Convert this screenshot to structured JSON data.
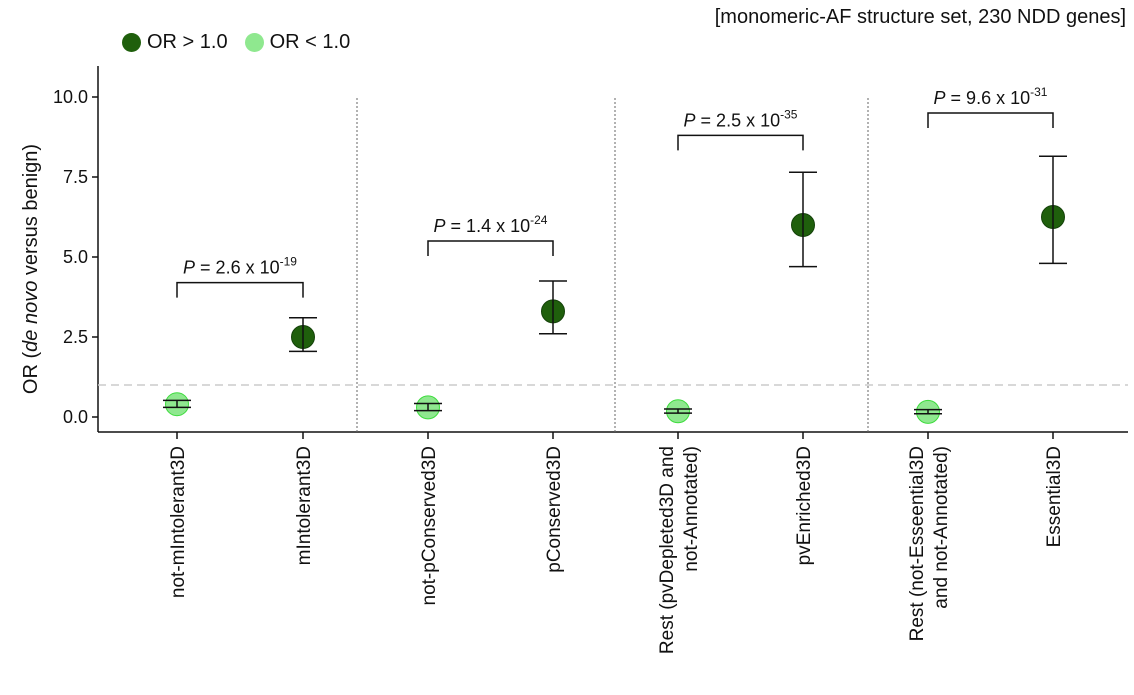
{
  "header": {
    "note": "[monomeric-AF structure set, 230 NDD genes]"
  },
  "legend": {
    "items": [
      {
        "label": "OR > 1.0",
        "color": "#1f5f0c"
      },
      {
        "label": "OR < 1.0",
        "color": "#8fe88f"
      }
    ]
  },
  "chart_data": {
    "type": "scatter",
    "ylabel": "OR (de novo versus benign)",
    "ylabel_parts": [
      {
        "text": "OR (",
        "italic": false
      },
      {
        "text": "de novo",
        "italic": true
      },
      {
        "text": " versus benign)",
        "italic": false
      }
    ],
    "ylim": [
      -0.5,
      11
    ],
    "yticks": [
      0.0,
      2.5,
      5.0,
      7.5,
      10.0
    ],
    "ytick_labels": [
      "0.0",
      "2.5",
      "5.0",
      "7.5",
      "10.0"
    ],
    "reference_line": 1.0,
    "categories": [
      [
        "not-mIntolerant3D"
      ],
      [
        "mIntolerant3D"
      ],
      [
        "not-pConserved3D"
      ],
      [
        "pConserved3D"
      ],
      [
        "Rest (pvDepleted3D and",
        "not-Annotated)"
      ],
      [
        "pvEnriched3D"
      ],
      [
        "Rest (not-Esseential3D",
        "and not-Annotated)"
      ],
      [
        "Essential3D"
      ]
    ],
    "points": [
      {
        "or": 0.4,
        "lo": 0.3,
        "hi": 0.52,
        "group": "OR < 1.0"
      },
      {
        "or": 2.5,
        "lo": 2.05,
        "hi": 3.1,
        "group": "OR > 1.0"
      },
      {
        "or": 0.3,
        "lo": 0.2,
        "hi": 0.42,
        "group": "OR < 1.0"
      },
      {
        "or": 3.3,
        "lo": 2.6,
        "hi": 4.25,
        "group": "OR > 1.0"
      },
      {
        "or": 0.18,
        "lo": 0.12,
        "hi": 0.25,
        "group": "OR < 1.0"
      },
      {
        "or": 6.0,
        "lo": 4.7,
        "hi": 7.65,
        "group": "OR > 1.0"
      },
      {
        "or": 0.16,
        "lo": 0.1,
        "hi": 0.23,
        "group": "OR < 1.0"
      },
      {
        "or": 6.25,
        "lo": 4.8,
        "hi": 8.15,
        "group": "OR > 1.0"
      }
    ],
    "comparisons": [
      {
        "pair": [
          0,
          1
        ],
        "label_prefix": "P",
        "label_mid": " = 2.6 x 10",
        "exponent": "-19",
        "y": 4.2
      },
      {
        "pair": [
          2,
          3
        ],
        "label_prefix": "P",
        "label_mid": " = 1.4 x 10",
        "exponent": "-24",
        "y": 5.5
      },
      {
        "pair": [
          4,
          5
        ],
        "label_prefix": "P",
        "label_mid": " = 2.5 x 10",
        "exponent": "-35",
        "y": 8.8
      },
      {
        "pair": [
          6,
          7
        ],
        "label_prefix": "P",
        "label_mid": " = 9.6 x 10",
        "exponent": "-31",
        "y": 9.5
      }
    ],
    "colors": {
      "high": "#1f5f0c",
      "low": "#8fe88f",
      "low_center": "#3ddc3d",
      "ref_line": "#cccccc",
      "axis": "#111111"
    }
  }
}
